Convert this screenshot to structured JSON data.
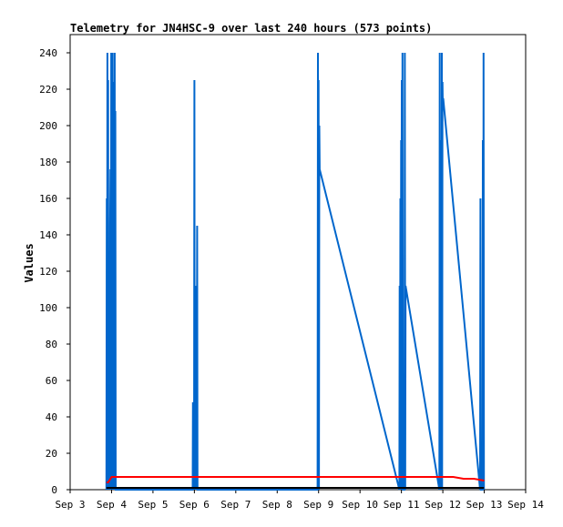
{
  "chart_data": {
    "type": "line",
    "title": "Telemetry for JN4HSC-9 over last 240 hours (573 points)",
    "ylabel": "Values",
    "xlabel": "",
    "xlim": [
      "Sep 3",
      "Sep 14"
    ],
    "ylim": [
      0,
      250
    ],
    "x_tick_labels": [
      "Sep 3",
      "Sep 4",
      "Sep 5",
      "Sep 6",
      "Sep 7",
      "Sep 8",
      "Sep 9",
      "Sep 10",
      "Sep 11",
      "Sep 12",
      "Sep 13",
      "Sep 14"
    ],
    "y_ticks": [
      0,
      20,
      40,
      60,
      80,
      100,
      120,
      140,
      160,
      180,
      200,
      220,
      240
    ],
    "grid": false,
    "legend": "none",
    "series": [
      {
        "color": "#0066cc",
        "points": [
          [
            "Sep 3 21:00",
            0
          ],
          [
            "Sep 3 21:12",
            160
          ],
          [
            "Sep 3 21:24",
            0
          ],
          [
            "Sep 3 21:36",
            240
          ],
          [
            "Sep 3 21:48",
            16
          ],
          [
            "Sep 3 22:00",
            225
          ],
          [
            "Sep 3 22:12",
            48
          ],
          [
            "Sep 3 22:24",
            0
          ],
          [
            "Sep 3 22:36",
            112
          ],
          [
            "Sep 3 22:48",
            80
          ],
          [
            "Sep 3 23:00",
            0
          ],
          [
            "Sep 3 23:12",
            145
          ],
          [
            "Sep 3 23:24",
            176
          ],
          [
            "Sep 3 23:36",
            0
          ],
          [
            "Sep 3 23:48",
            240
          ],
          [
            "Sep 4 00:00",
            0
          ],
          [
            "Sep 4 00:12",
            208
          ],
          [
            "Sep 4 00:24",
            0
          ],
          [
            "Sep 4 00:36",
            240
          ],
          [
            "Sep 4 00:48",
            0
          ],
          [
            "Sep 4 01:00",
            224
          ],
          [
            "Sep 4 01:12",
            0
          ],
          [
            "Sep 4 01:24",
            208
          ],
          [
            "Sep 4 01:36",
            0
          ],
          [
            "Sep 4 01:48",
            240
          ],
          [
            "Sep 4 02:00",
            0
          ],
          [
            "Sep 4 02:12",
            208
          ],
          [
            "Sep 4 02:24",
            0
          ],
          [
            "Sep 5 23:00",
            0
          ],
          [
            "Sep 5 23:12",
            48
          ],
          [
            "Sep 5 23:24",
            0
          ],
          [
            "Sep 5 23:36",
            25
          ],
          [
            "Sep 5 23:48",
            0
          ],
          [
            "Sep 6 00:00",
            225
          ],
          [
            "Sep 6 00:12",
            0
          ],
          [
            "Sep 6 00:24",
            112
          ],
          [
            "Sep 6 00:36",
            0
          ],
          [
            "Sep 6 00:48",
            112
          ],
          [
            "Sep 6 01:00",
            0
          ],
          [
            "Sep 6 01:12",
            96
          ],
          [
            "Sep 6 01:24",
            0
          ],
          [
            "Sep 6 01:36",
            145
          ],
          [
            "Sep 6 01:48",
            0
          ],
          [
            "Sep 8 23:24",
            0
          ],
          [
            "Sep 8 23:36",
            240
          ],
          [
            "Sep 8 23:48",
            0
          ],
          [
            "Sep 9 00:00",
            225
          ],
          [
            "Sep 9 00:12",
            0
          ],
          [
            "Sep 9 00:24",
            200
          ],
          [
            "Sep 9 00:36",
            176
          ],
          [
            "Sep 10 22:48",
            0
          ],
          [
            "Sep 10 23:00",
            112
          ],
          [
            "Sep 10 23:12",
            0
          ],
          [
            "Sep 10 23:24",
            160
          ],
          [
            "Sep 10 23:36",
            0
          ],
          [
            "Sep 10 23:48",
            192
          ],
          [
            "Sep 11 00:00",
            0
          ],
          [
            "Sep 11 00:12",
            225
          ],
          [
            "Sep 11 00:24",
            0
          ],
          [
            "Sep 11 00:36",
            240
          ],
          [
            "Sep 11 00:48",
            0
          ],
          [
            "Sep 11 01:00",
            0
          ],
          [
            "Sep 11 01:12",
            0
          ],
          [
            "Sep 11 01:24",
            0
          ],
          [
            "Sep 11 01:36",
            0
          ],
          [
            "Sep 11 01:48",
            0
          ],
          [
            "Sep 11 02:00",
            240
          ],
          [
            "Sep 11 02:12",
            0
          ],
          [
            "Sep 11 02:24",
            112
          ],
          [
            "Sep 11 22:00",
            0
          ],
          [
            "Sep 11 22:12",
            240
          ],
          [
            "Sep 11 22:24",
            0
          ],
          [
            "Sep 11 22:36",
            192
          ],
          [
            "Sep 11 22:48",
            0
          ],
          [
            "Sep 11 23:00",
            160
          ],
          [
            "Sep 11 23:12",
            0
          ],
          [
            "Sep 11 23:24",
            240
          ],
          [
            "Sep 11 23:36",
            0
          ],
          [
            "Sep 11 23:48",
            224
          ],
          [
            "Sep 12 00:00",
            210
          ],
          [
            "Sep 12 00:12",
            215
          ],
          [
            "Sep 12 21:36",
            0
          ],
          [
            "Sep 12 21:48",
            160
          ],
          [
            "Sep 12 22:00",
            0
          ],
          [
            "Sep 12 22:12",
            0
          ],
          [
            "Sep 12 22:24",
            0
          ],
          [
            "Sep 12 22:36",
            0
          ],
          [
            "Sep 12 22:48",
            0
          ],
          [
            "Sep 12 23:00",
            0
          ],
          [
            "Sep 12 23:12",
            192
          ],
          [
            "Sep 12 23:24",
            0
          ],
          [
            "Sep 12 23:36",
            240
          ],
          [
            "Sep 12 23:48",
            0
          ]
        ]
      },
      {
        "color": "#ff0000",
        "points": [
          [
            "Sep 3 21:00",
            4
          ],
          [
            "Sep 3 22:00",
            4
          ],
          [
            "Sep 4 00:00",
            7
          ],
          [
            "Sep 6 00:00",
            7
          ],
          [
            "Sep 9 00:00",
            7
          ],
          [
            "Sep 11 00:00",
            7
          ],
          [
            "Sep 12 00:00",
            7
          ],
          [
            "Sep 12 06:00",
            7
          ],
          [
            "Sep 12 12:00",
            6
          ],
          [
            "Sep 12 18:00",
            6
          ],
          [
            "Sep 13 00:00",
            5
          ]
        ]
      },
      {
        "color": "#000000",
        "points": [
          [
            "Sep 3 21:00",
            1
          ],
          [
            "Sep 6 00:00",
            1
          ],
          [
            "Sep 9 00:00",
            1
          ],
          [
            "Sep 12 00:00",
            1
          ],
          [
            "Sep 12 23:48",
            1
          ]
        ]
      }
    ]
  }
}
